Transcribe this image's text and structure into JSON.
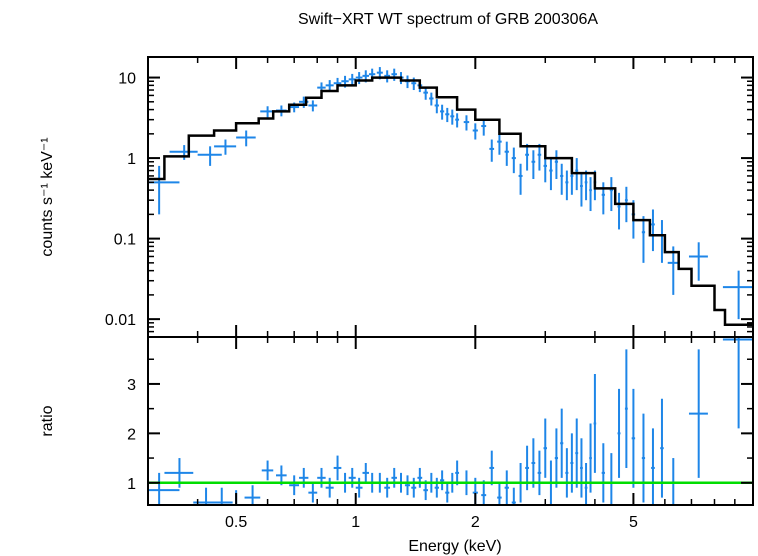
{
  "chart_data": [
    {
      "type": "line",
      "panel": "spectrum",
      "title": "Swift−XRT WT spectrum of GRB 200306A",
      "ylabel": "counts s⁻¹ keV⁻¹",
      "xscale": "log",
      "yscale": "log",
      "xlim": [
        0.3,
        10
      ],
      "ylim": [
        0.006,
        18
      ],
      "xticklabels": [
        "0.5",
        "1",
        "2",
        "5"
      ],
      "yticks": [
        0.01,
        0.1,
        1,
        10
      ],
      "yticklabels": [
        "0.01",
        "0.1",
        "1",
        "10"
      ],
      "data_color": "#1e86e8",
      "model_color": "#000000",
      "model": {
        "x": [
          0.3,
          0.33,
          0.38,
          0.44,
          0.5,
          0.57,
          0.62,
          0.68,
          0.75,
          0.82,
          0.9,
          1.0,
          1.1,
          1.2,
          1.3,
          1.45,
          1.6,
          1.8,
          2.0,
          2.3,
          2.6,
          3.0,
          3.5,
          4.0,
          4.5,
          5.0,
          5.5,
          6.0,
          6.5,
          7.0,
          8.0,
          8.5,
          10.0
        ],
        "y": [
          0.55,
          1.05,
          1.9,
          2.2,
          2.7,
          3.1,
          3.8,
          4.6,
          5.6,
          6.8,
          8.0,
          9.2,
          10.0,
          10.0,
          9.2,
          7.5,
          5.7,
          4.0,
          3.0,
          2.0,
          1.4,
          1.0,
          0.65,
          0.42,
          0.27,
          0.17,
          0.11,
          0.068,
          0.042,
          0.026,
          0.013,
          0.0085,
          0.005
        ]
      },
      "series": [
        {
          "x": [
            0.32,
            0.37,
            0.43,
            0.47,
            0.53,
            0.6,
            0.65,
            0.7,
            0.74,
            0.78,
            0.82,
            0.86,
            0.9,
            0.94,
            0.98,
            1.02,
            1.06,
            1.1,
            1.15,
            1.2,
            1.25,
            1.3,
            1.35,
            1.4,
            1.45,
            1.5,
            1.55,
            1.6,
            1.65,
            1.7,
            1.75,
            1.8,
            1.9,
            2.0,
            2.1,
            2.2,
            2.3,
            2.4,
            2.5,
            2.6,
            2.7,
            2.8,
            2.9,
            3.0,
            3.1,
            3.2,
            3.3,
            3.4,
            3.5,
            3.6,
            3.7,
            3.8,
            3.9,
            4.0,
            4.2,
            4.4,
            4.6,
            4.8,
            5.0,
            5.3,
            5.6,
            5.9,
            6.3,
            7.3,
            9.2
          ],
          "y": [
            0.5,
            1.2,
            1.1,
            1.4,
            1.8,
            3.8,
            3.9,
            4.3,
            5.0,
            4.5,
            7.5,
            8.0,
            8.5,
            9.0,
            9.5,
            10.0,
            10.5,
            11.0,
            11.5,
            10.5,
            11.0,
            10.0,
            9.0,
            8.5,
            8.0,
            6.5,
            5.5,
            4.5,
            3.8,
            3.5,
            3.3,
            3.0,
            2.8,
            2.2,
            2.5,
            1.3,
            1.6,
            1.2,
            1.0,
            0.6,
            1.1,
            0.9,
            1.1,
            0.8,
            0.7,
            0.9,
            0.6,
            0.5,
            0.6,
            0.7,
            0.45,
            0.5,
            0.4,
            0.5,
            0.35,
            0.4,
            0.25,
            0.3,
            0.2,
            0.12,
            0.15,
            0.11,
            0.05,
            0.06,
            0.025
          ],
          "xerr": [
            0.04,
            0.03,
            0.03,
            0.03,
            0.03,
            0.025,
            0.02,
            0.02,
            0.02,
            0.02,
            0.02,
            0.02,
            0.02,
            0.02,
            0.02,
            0.02,
            0.02,
            0.02,
            0.02,
            0.02,
            0.02,
            0.02,
            0.02,
            0.02,
            0.02,
            0.02,
            0.02,
            0.02,
            0.02,
            0.02,
            0.02,
            0.02,
            0.03,
            0.03,
            0.03,
            0.03,
            0.03,
            0.03,
            0.03,
            0.03,
            0.03,
            0.03,
            0.03,
            0.03,
            0.03,
            0.03,
            0.03,
            0.03,
            0.03,
            0.03,
            0.03,
            0.03,
            0.03,
            0.03,
            0.04,
            0.04,
            0.04,
            0.04,
            0.05,
            0.05,
            0.06,
            0.06,
            0.2,
            0.4,
            0.8
          ],
          "yerr": [
            0.3,
            0.25,
            0.3,
            0.3,
            0.4,
            0.6,
            0.6,
            0.6,
            0.8,
            0.7,
            1.2,
            1.3,
            1.4,
            1.5,
            1.6,
            1.7,
            1.8,
            1.9,
            2.0,
            1.8,
            1.9,
            1.7,
            1.6,
            1.5,
            1.4,
            1.2,
            1.0,
            0.9,
            0.8,
            0.7,
            0.7,
            0.6,
            0.6,
            0.5,
            0.6,
            0.4,
            0.5,
            0.4,
            0.35,
            0.25,
            0.4,
            0.35,
            0.4,
            0.3,
            0.3,
            0.35,
            0.25,
            0.2,
            0.25,
            0.3,
            0.2,
            0.2,
            0.18,
            0.2,
            0.15,
            0.18,
            0.12,
            0.14,
            0.1,
            0.07,
            0.08,
            0.06,
            0.03,
            0.03,
            0.015
          ]
        }
      ]
    },
    {
      "type": "scatter",
      "panel": "ratio",
      "xlabel": "Energy (keV)",
      "ylabel": "ratio",
      "xscale": "log",
      "xlim": [
        0.3,
        10
      ],
      "ylim": [
        0.55,
        3.95
      ],
      "xticks": [
        0.5,
        1,
        2,
        5
      ],
      "xticklabels": [
        "0.5",
        "1",
        "2",
        "5"
      ],
      "yticks": [
        1,
        2,
        3
      ],
      "yticklabels": [
        "1",
        "2",
        "3"
      ],
      "reference_line": 1,
      "reference_color": "#00dd00",
      "data_color": "#1e86e8",
      "series": [
        {
          "x": [
            0.32,
            0.36,
            0.42,
            0.46,
            0.5,
            0.55,
            0.6,
            0.65,
            0.7,
            0.74,
            0.78,
            0.82,
            0.86,
            0.9,
            0.94,
            0.98,
            1.02,
            1.06,
            1.1,
            1.15,
            1.2,
            1.25,
            1.3,
            1.35,
            1.4,
            1.45,
            1.5,
            1.55,
            1.6,
            1.65,
            1.7,
            1.75,
            1.8,
            1.9,
            2.0,
            2.1,
            2.2,
            2.3,
            2.4,
            2.5,
            2.6,
            2.7,
            2.8,
            2.9,
            3.0,
            3.1,
            3.2,
            3.3,
            3.4,
            3.5,
            3.6,
            3.7,
            3.8,
            3.9,
            4.0,
            4.2,
            4.4,
            4.6,
            4.8,
            5.0,
            5.3,
            5.6,
            5.9,
            6.3,
            7.3,
            9.2
          ],
          "y": [
            0.85,
            1.2,
            0.6,
            0.6,
            0.55,
            0.7,
            1.25,
            1.15,
            0.95,
            1.1,
            0.8,
            1.1,
            0.9,
            1.3,
            1.0,
            1.1,
            0.9,
            1.2,
            1.0,
            1.0,
            0.9,
            1.1,
            1.0,
            0.95,
            0.9,
            1.1,
            0.85,
            1.0,
            0.9,
            1.05,
            0.8,
            1.0,
            1.2,
            1.0,
            0.8,
            0.75,
            1.3,
            0.7,
            0.9,
            0.6,
            1.0,
            1.3,
            1.4,
            1.2,
            1.7,
            1.0,
            1.5,
            1.8,
            1.2,
            1.4,
            1.6,
            1.3,
            0.9,
            1.5,
            2.2,
            1.2,
            1.0,
            2.0,
            2.5,
            1.9,
            1.5,
            1.3,
            1.7,
            1.0,
            2.4,
            3.9
          ],
          "xerr": [
            0.04,
            0.03,
            0.03,
            0.03,
            0.03,
            0.025,
            0.02,
            0.02,
            0.02,
            0.02,
            0.02,
            0.02,
            0.02,
            0.02,
            0.02,
            0.02,
            0.02,
            0.02,
            0.02,
            0.02,
            0.02,
            0.02,
            0.02,
            0.02,
            0.02,
            0.02,
            0.02,
            0.02,
            0.02,
            0.02,
            0.02,
            0.02,
            0.02,
            0.03,
            0.03,
            0.03,
            0.03,
            0.03,
            0.03,
            0.03,
            0.03,
            0.03,
            0.03,
            0.03,
            0.03,
            0.03,
            0.03,
            0.03,
            0.03,
            0.03,
            0.03,
            0.03,
            0.03,
            0.03,
            0.03,
            0.04,
            0.04,
            0.04,
            0.04,
            0.05,
            0.05,
            0.06,
            0.06,
            0.2,
            0.4,
            0.8
          ],
          "yerr": [
            0.35,
            0.3,
            0.3,
            0.3,
            0.3,
            0.25,
            0.2,
            0.2,
            0.2,
            0.2,
            0.2,
            0.2,
            0.2,
            0.25,
            0.2,
            0.2,
            0.2,
            0.2,
            0.2,
            0.2,
            0.2,
            0.2,
            0.2,
            0.2,
            0.2,
            0.2,
            0.2,
            0.2,
            0.2,
            0.2,
            0.2,
            0.2,
            0.25,
            0.25,
            0.3,
            0.3,
            0.35,
            0.3,
            0.35,
            0.3,
            0.4,
            0.45,
            0.5,
            0.45,
            0.6,
            0.45,
            0.6,
            0.7,
            0.5,
            0.6,
            0.7,
            0.6,
            0.5,
            0.7,
            1.0,
            0.6,
            0.6,
            0.9,
            1.2,
            1.0,
            0.9,
            0.8,
            1.0,
            0.5,
            1.3,
            1.8
          ]
        }
      ]
    }
  ]
}
